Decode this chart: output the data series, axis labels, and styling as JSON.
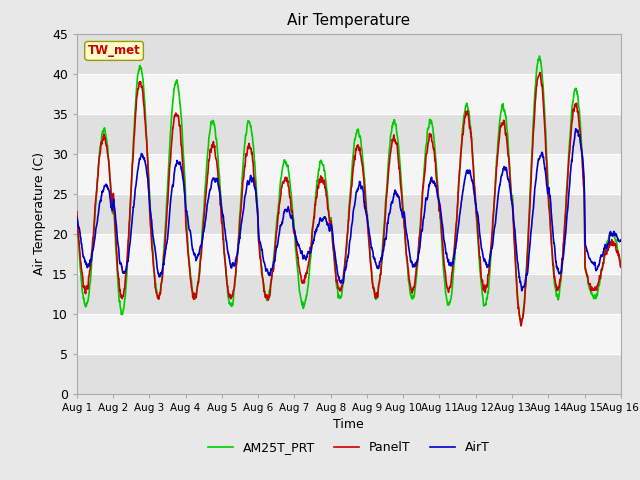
{
  "title": "Air Temperature",
  "xlabel": "Time",
  "ylabel": "Air Temperature (C)",
  "ylim": [
    0,
    45
  ],
  "yticks": [
    0,
    5,
    10,
    15,
    20,
    25,
    30,
    35,
    40,
    45
  ],
  "annotation_text": "TW_met",
  "annotation_color": "#cc0000",
  "annotation_bg": "#ffffcc",
  "annotation_border": "#999900",
  "line_PanelT_color": "#cc0000",
  "line_AirT_color": "#0000cc",
  "line_AM25T_color": "#00cc00",
  "line_width": 1.2,
  "background_color": "#e8e8e8",
  "inner_bg_color": "#f5f5f5",
  "band_light": "#f5f5f5",
  "band_dark": "#e0e0e0",
  "n_days": 15,
  "pts_per_day": 144
}
